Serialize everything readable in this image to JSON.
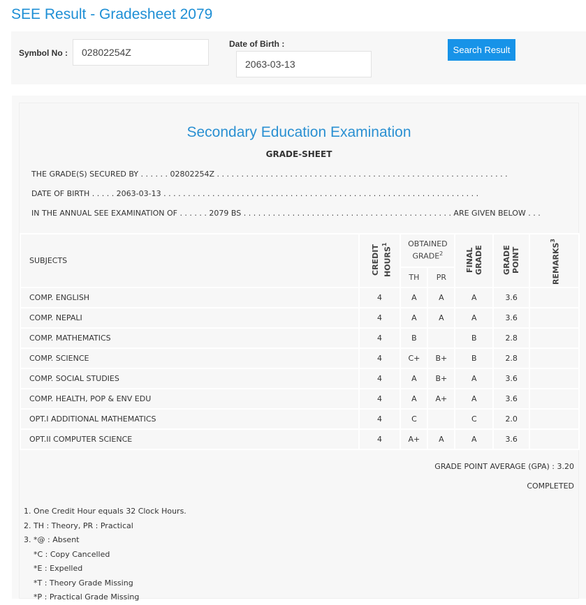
{
  "page": {
    "title": "SEE Result - Gradesheet 2079"
  },
  "search": {
    "symbol_label": "Symbol No :",
    "symbol_value": "02802254Z",
    "dob_label": "Date of Birth :",
    "dob_value": "2063-03-13",
    "button": "Search Result",
    "accent": "#1793e8"
  },
  "sheet": {
    "title": "Secondary Education Examination",
    "subtitle": "GRADE-SHEET",
    "line1": "THE GRADE(S) SECURED BY . . . . . . 02802254Z . . . . . . . . . . . . . . . . . . . . . . . . . . . . . . . . . . . . . . . . . . . . . . . . . . . . . . . . . . . .",
    "line2": "DATE OF BIRTH . . . . . 2063-03-13 . . . . . . . . . . . . . . . . . . . . . . . . . . . . . . . . . . . . . . . . . . . . . . . . . . . . . . . . . . . . . . . . .",
    "line3": "IN THE ANNUAL SEE EXAMINATION OF . . . . . . 2079 BS . . . . . . . . . . . . . . . . . . . . . . . . . . . . . . . . . . . . . . . . . . . ARE GIVEN BELOW . . .",
    "headers": {
      "subjects": "SUBJECTS",
      "credit": "CREDIT HOURS",
      "credit_sup": "1",
      "obtained": "OBTAINED GRADE",
      "obtained_sup": "2",
      "th": "TH",
      "pr": "PR",
      "final": "FINAL GRADE",
      "gp": "GRADE POINT",
      "remarks": "REMARKS",
      "remarks_sup": "3"
    },
    "rows": [
      {
        "subject": "COMP. ENGLISH",
        "credit": "4",
        "th": "A",
        "pr": "A",
        "final": "A",
        "gp": "3.6",
        "remarks": ""
      },
      {
        "subject": "COMP. NEPALI",
        "credit": "4",
        "th": "A",
        "pr": "A",
        "final": "A",
        "gp": "3.6",
        "remarks": ""
      },
      {
        "subject": "COMP. MATHEMATICS",
        "credit": "4",
        "th": "B",
        "pr": "",
        "final": "B",
        "gp": "2.8",
        "remarks": ""
      },
      {
        "subject": "COMP. SCIENCE",
        "credit": "4",
        "th": "C+",
        "pr": "B+",
        "final": "B",
        "gp": "2.8",
        "remarks": ""
      },
      {
        "subject": "COMP. SOCIAL STUDIES",
        "credit": "4",
        "th": "A",
        "pr": "B+",
        "final": "A",
        "gp": "3.6",
        "remarks": ""
      },
      {
        "subject": "COMP. HEALTH, POP & ENV EDU",
        "credit": "4",
        "th": "A",
        "pr": "A+",
        "final": "A",
        "gp": "3.6",
        "remarks": ""
      },
      {
        "subject": "OPT.I ADDITIONAL MATHEMATICS",
        "credit": "4",
        "th": "C",
        "pr": "",
        "final": "C",
        "gp": "2.0",
        "remarks": ""
      },
      {
        "subject": "OPT.II COMPUTER SCIENCE",
        "credit": "4",
        "th": "A+",
        "pr": "A",
        "final": "A",
        "gp": "3.6",
        "remarks": ""
      }
    ],
    "gpa": "GRADE POINT AVERAGE (GPA) : 3.20",
    "status": "COMPLETED",
    "notes": [
      "1. One Credit Hour equals 32 Clock Hours.",
      "2. TH : Theory, PR : Practical",
      "3. *@ : Absent",
      "    *C : Copy Cancelled",
      "    *E : Expelled",
      "    *T : Theory Grade Missing",
      "    *P : Practical Grade Missing"
    ]
  }
}
